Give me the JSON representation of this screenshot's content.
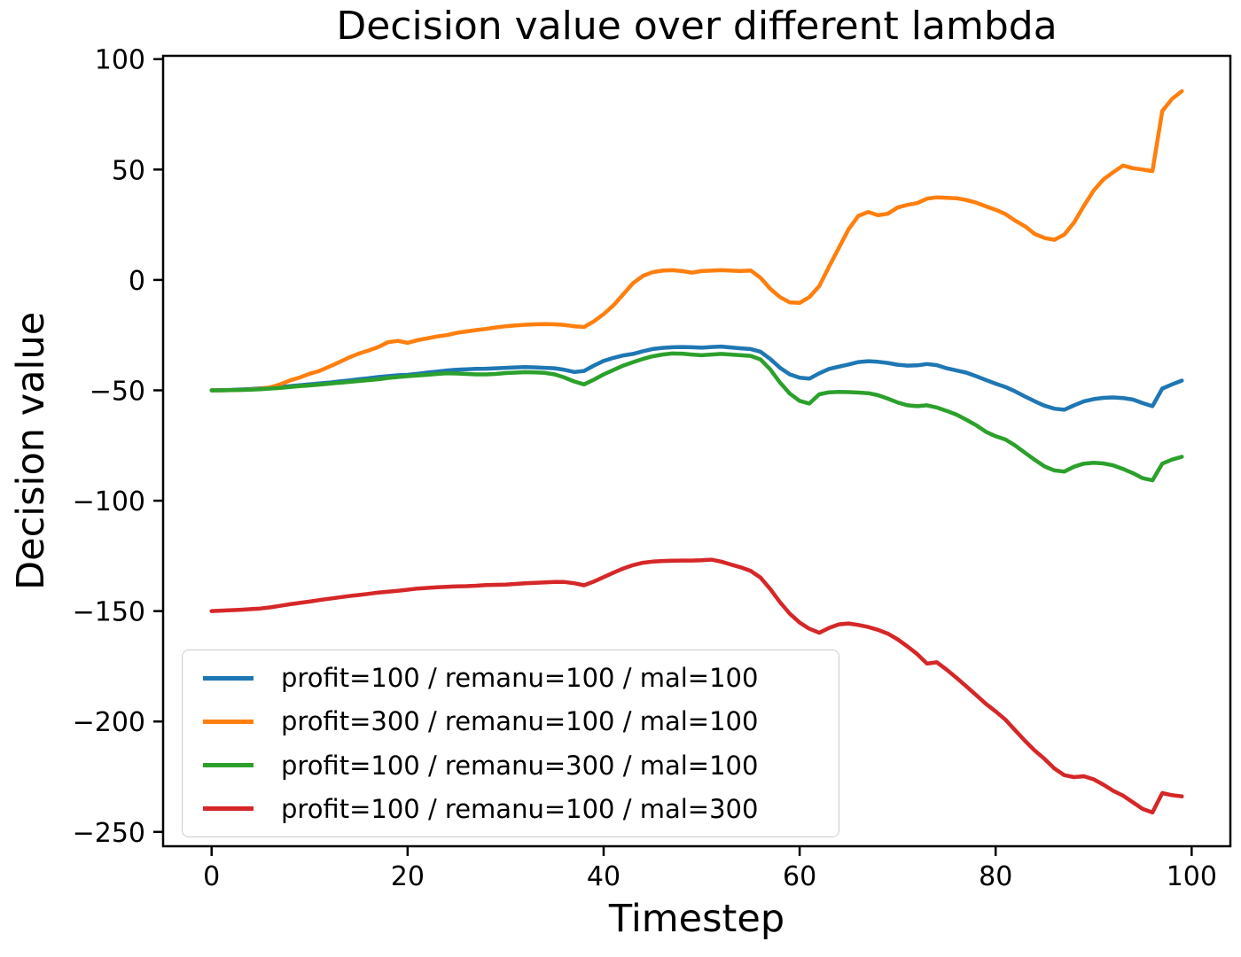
{
  "title": "Decision value over different lambda",
  "axes": {
    "xlabel": "Timestep",
    "ylabel": "Decision value",
    "xticks": {
      "values": [
        0,
        20,
        40,
        60,
        80,
        100
      ],
      "labels": [
        "0",
        "20",
        "40",
        "60",
        "80",
        "100"
      ]
    },
    "yticks": {
      "values": [
        100,
        50,
        0,
        -50,
        -100,
        -150,
        -200,
        -250
      ],
      "labels": [
        "100",
        "50",
        "0",
        "−50",
        "−100",
        "−150",
        "−200",
        "−250"
      ]
    },
    "xlim": [
      -4.95,
      103.95
    ],
    "ylim": [
      -256.5,
      101.5
    ],
    "grid": false
  },
  "legend": {
    "position": "lower left",
    "entries": [
      "profit=100 / remanu=100 / mal=100",
      "profit=300 / remanu=100 / mal=100",
      "profit=100 / remanu=300 / mal=100",
      "profit=100 / remanu=100 / mal=300"
    ]
  },
  "chart_data": {
    "type": "line",
    "title": "Decision value over different lambda",
    "xlabel": "Timestep",
    "ylabel": "Decision value",
    "x": [
      0,
      1,
      2,
      3,
      4,
      5,
      6,
      7,
      8,
      9,
      10,
      11,
      12,
      13,
      14,
      15,
      16,
      17,
      18,
      19,
      20,
      21,
      22,
      23,
      24,
      25,
      26,
      27,
      28,
      29,
      30,
      31,
      32,
      33,
      34,
      35,
      36,
      37,
      38,
      39,
      40,
      41,
      42,
      43,
      44,
      45,
      46,
      47,
      48,
      49,
      50,
      51,
      52,
      53,
      54,
      55,
      56,
      57,
      58,
      59,
      60,
      61,
      62,
      63,
      64,
      65,
      66,
      67,
      68,
      69,
      70,
      71,
      72,
      73,
      74,
      75,
      76,
      77,
      78,
      79,
      80,
      81,
      82,
      83,
      84,
      85,
      86,
      87,
      88,
      89,
      90,
      91,
      92,
      93,
      94,
      95,
      96,
      97,
      98,
      99
    ],
    "series": [
      {
        "name": "profit=100 / remanu=100 / mal=100",
        "color": "#1f77b4",
        "values": [
          -50.0,
          -49.9,
          -49.8,
          -49.6,
          -49.4,
          -49.1,
          -48.8,
          -48.5,
          -48.1,
          -47.7,
          -47.3,
          -46.9,
          -46.5,
          -46.0,
          -45.5,
          -45.0,
          -44.5,
          -44.0,
          -43.6,
          -43.2,
          -43.0,
          -42.5,
          -42.0,
          -41.5,
          -41.0,
          -40.7,
          -40.5,
          -40.3,
          -40.2,
          -40.0,
          -39.8,
          -39.6,
          -39.5,
          -39.6,
          -39.8,
          -40.0,
          -40.7,
          -41.7,
          -41.2,
          -38.8,
          -36.7,
          -35.3,
          -34.2,
          -33.5,
          -32.3,
          -31.3,
          -30.8,
          -30.5,
          -30.4,
          -30.5,
          -30.7,
          -30.4,
          -30.2,
          -30.6,
          -31.0,
          -31.3,
          -32.5,
          -35.8,
          -39.8,
          -42.8,
          -44.3,
          -44.7,
          -42.3,
          -40.3,
          -39.3,
          -38.3,
          -37.2,
          -36.8,
          -37.1,
          -37.6,
          -38.4,
          -38.8,
          -38.7,
          -38.1,
          -38.6,
          -40.0,
          -41.0,
          -42.0,
          -43.6,
          -45.3,
          -47.0,
          -48.5,
          -50.5,
          -52.8,
          -55.0,
          -57.0,
          -58.3,
          -58.8,
          -56.8,
          -55.0,
          -54.0,
          -53.4,
          -53.2,
          -53.5,
          -54.2,
          -55.8,
          -57.2,
          -49.2,
          -47.3,
          -45.6
        ]
      },
      {
        "name": "profit=300 / remanu=100 / mal=100",
        "color": "#ff7f0e",
        "values": [
          -50.0,
          -50.0,
          -49.9,
          -49.8,
          -49.6,
          -49.3,
          -48.7,
          -47.3,
          -45.5,
          -44.2,
          -42.5,
          -41.2,
          -39.3,
          -37.3,
          -35.2,
          -33.4,
          -32.0,
          -30.4,
          -28.2,
          -27.6,
          -28.5,
          -27.3,
          -26.5,
          -25.6,
          -25.0,
          -24.0,
          -23.3,
          -22.7,
          -22.2,
          -21.5,
          -21.0,
          -20.6,
          -20.3,
          -20.1,
          -20.0,
          -20.1,
          -20.4,
          -21.0,
          -21.3,
          -18.8,
          -15.5,
          -11.5,
          -6.5,
          -1.5,
          1.8,
          3.5,
          4.2,
          4.4,
          4.0,
          3.3,
          4.0,
          4.2,
          4.4,
          4.2,
          4.0,
          4.3,
          1.0,
          -4.0,
          -7.8,
          -10.2,
          -10.4,
          -7.8,
          -2.8,
          6.0,
          14.5,
          23.0,
          29.0,
          30.8,
          29.3,
          30.0,
          32.8,
          34.0,
          34.8,
          36.8,
          37.4,
          37.2,
          37.0,
          36.2,
          35.0,
          33.3,
          31.8,
          29.8,
          26.8,
          24.3,
          20.8,
          19.0,
          18.2,
          20.5,
          26.0,
          33.5,
          40.5,
          45.5,
          48.8,
          51.8,
          50.6,
          50.0,
          49.3,
          76.5,
          82.0,
          85.5
        ]
      },
      {
        "name": "profit=100 / remanu=300 / mal=100",
        "color": "#2ca02c",
        "values": [
          -50.0,
          -50.0,
          -49.9,
          -49.8,
          -49.7,
          -49.5,
          -49.2,
          -48.9,
          -48.5,
          -48.1,
          -47.8,
          -47.4,
          -47.0,
          -46.6,
          -46.2,
          -45.8,
          -45.4,
          -45.0,
          -44.4,
          -44.0,
          -43.6,
          -43.3,
          -43.0,
          -42.6,
          -42.3,
          -42.4,
          -42.6,
          -42.8,
          -42.8,
          -42.6,
          -42.2,
          -42.0,
          -41.8,
          -41.9,
          -42.1,
          -42.8,
          -44.2,
          -46.0,
          -47.3,
          -45.2,
          -42.8,
          -40.8,
          -38.8,
          -37.3,
          -35.8,
          -34.6,
          -33.8,
          -33.3,
          -33.4,
          -33.8,
          -34.1,
          -33.8,
          -33.5,
          -33.8,
          -34.1,
          -34.4,
          -36.0,
          -40.5,
          -46.5,
          -51.5,
          -54.8,
          -56.0,
          -51.8,
          -50.9,
          -50.7,
          -50.8,
          -51.0,
          -51.3,
          -52.2,
          -53.8,
          -55.5,
          -56.8,
          -57.2,
          -56.8,
          -57.8,
          -59.3,
          -61.0,
          -63.3,
          -65.8,
          -68.8,
          -70.8,
          -72.3,
          -75.0,
          -78.3,
          -81.5,
          -84.5,
          -86.3,
          -86.8,
          -84.6,
          -83.2,
          -82.8,
          -83.1,
          -84.0,
          -85.6,
          -87.5,
          -89.8,
          -90.8,
          -83.2,
          -81.4,
          -80.1
        ]
      },
      {
        "name": "profit=100 / remanu=100 / mal=300",
        "color": "#d62728",
        "values": [
          -150.0,
          -149.8,
          -149.6,
          -149.4,
          -149.1,
          -148.8,
          -148.3,
          -147.6,
          -146.9,
          -146.3,
          -145.7,
          -145.0,
          -144.4,
          -143.8,
          -143.2,
          -142.7,
          -142.2,
          -141.6,
          -141.2,
          -140.8,
          -140.3,
          -139.8,
          -139.5,
          -139.2,
          -139.0,
          -138.8,
          -138.7,
          -138.5,
          -138.2,
          -138.1,
          -138.0,
          -137.7,
          -137.4,
          -137.2,
          -137.0,
          -136.8,
          -136.8,
          -137.4,
          -138.3,
          -136.6,
          -134.6,
          -132.6,
          -130.7,
          -129.2,
          -128.1,
          -127.6,
          -127.3,
          -127.2,
          -127.1,
          -127.1,
          -127.0,
          -126.7,
          -127.6,
          -128.9,
          -130.2,
          -131.8,
          -134.8,
          -140.0,
          -146.0,
          -151.2,
          -155.2,
          -158.0,
          -159.8,
          -157.6,
          -156.0,
          -155.6,
          -156.3,
          -157.2,
          -158.5,
          -160.2,
          -162.8,
          -166.0,
          -169.5,
          -173.8,
          -173.2,
          -176.5,
          -180.2,
          -184.0,
          -188.0,
          -192.0,
          -195.4,
          -199.2,
          -204.0,
          -208.8,
          -213.2,
          -217.0,
          -221.3,
          -224.3,
          -225.2,
          -224.8,
          -226.2,
          -228.6,
          -231.4,
          -233.6,
          -236.6,
          -239.6,
          -241.2,
          -232.4,
          -233.4,
          -233.9
        ]
      }
    ]
  }
}
